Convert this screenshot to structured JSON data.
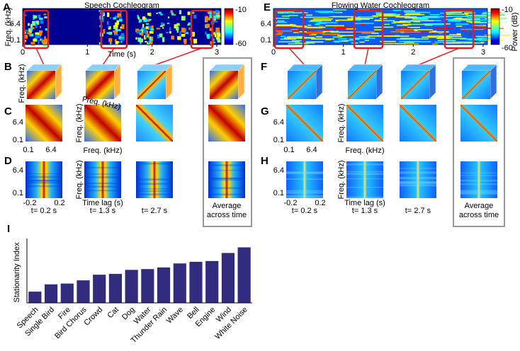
{
  "sides": [
    {
      "cochleogram": {
        "letter": "A",
        "title": "Speech Cochleogram",
        "ylabel": "Freq. (kHz)",
        "yticks": [
          6.4,
          0.1
        ],
        "xticks": [
          0,
          1,
          2,
          3
        ],
        "xlabel": "Time (s)",
        "colorbar_ticks": [
          -10,
          -60
        ]
      },
      "cube_row": {
        "letter": "B",
        "ylabel": "Freq. (kHz)",
        "xlabel": "Freq. (kHz)"
      },
      "corr_row": {
        "letter": "C",
        "yticks": [
          6.4,
          0.1
        ],
        "xticks": [
          0.1,
          6.4
        ],
        "ylabel": "Freq. (kHz)",
        "xlabel": "Freq. (kHz)"
      },
      "lag_row": {
        "letter": "D",
        "yticks": [
          6.4,
          0.1
        ],
        "xticks": [
          -0.2,
          0.2
        ],
        "ylabel": "Freq. (kHz)",
        "xlabel": "Time lag (s)"
      },
      "columns": [
        "t= 0.2 s",
        "t= 1.3 s",
        "t= 2.7 s",
        "Average across time"
      ]
    },
    {
      "cochleogram": {
        "letter": "E",
        "title": "Flowing Water Cochleogram",
        "yticks": [
          6.4,
          0.1
        ],
        "xticks": [
          0,
          1,
          2,
          3
        ],
        "colorbar_ticks": [
          -10,
          -60
        ],
        "colorbar_label": "Power (dB)"
      },
      "cube_row": {
        "letter": "F"
      },
      "corr_row": {
        "letter": "G",
        "yticks": [
          6.4,
          0.1
        ],
        "xticks": [
          0.1,
          6.4
        ],
        "ylabel": "Freq. (kHz)",
        "xlabel": "Freq. (kHz)"
      },
      "lag_row": {
        "letter": "H",
        "yticks": [
          6.4,
          0.1
        ],
        "xticks": [
          -0.2,
          0.2
        ],
        "ylabel": "Freq. (kHz)",
        "xlabel": "Time lag (s)"
      },
      "columns": [
        "t= 0.2 s",
        "t= 1.3 s",
        "t= 2.7 s",
        "Average across time"
      ]
    }
  ],
  "chart_data": {
    "type": "bar",
    "letter": "I",
    "ylabel": "Stationarity Index",
    "categories": [
      "Speech",
      "Single Bird",
      "Fire",
      "Bird Chorus",
      "Crowd",
      "Cat",
      "Dog",
      "Water",
      "Thunder Rain",
      "Wave",
      "Bell",
      "Engine",
      "Wind",
      "White Noise"
    ],
    "values": [
      0.14,
      0.23,
      0.24,
      0.28,
      0.35,
      0.36,
      0.41,
      0.42,
      0.44,
      0.49,
      0.51,
      0.52,
      0.62,
      0.69
    ],
    "color": "#322c7e",
    "ylim": [
      0,
      0.8
    ]
  }
}
